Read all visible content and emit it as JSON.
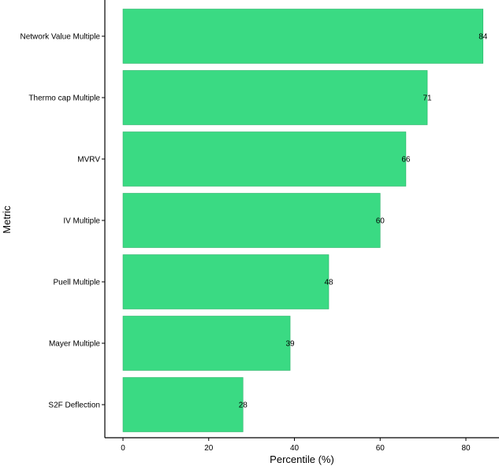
{
  "chart_data": {
    "type": "bar",
    "orientation": "horizontal",
    "categories": [
      "Network Value Multiple",
      "Thermo cap Multiple",
      "MVRV",
      "IV Multiple",
      "Puell Multiple",
      "Mayer Multiple",
      "S2F Deflection"
    ],
    "values": [
      84,
      71,
      66,
      60,
      48,
      39,
      28
    ],
    "data_labels": [
      "84",
      "71",
      "66",
      "60",
      "48",
      "39",
      "28"
    ],
    "xlabel": "Percentile (%)",
    "ylabel": "Metric",
    "xlim": [
      0,
      88
    ],
    "x_ticks": [
      0,
      20,
      40,
      60,
      80
    ],
    "x_tick_labels": [
      "0",
      "20",
      "40",
      "60",
      "80"
    ],
    "grid": false,
    "legend": "none",
    "bar_color": "#3ADA83",
    "bar_edge_color": "#2FB56C",
    "axis_color": "#000000"
  }
}
